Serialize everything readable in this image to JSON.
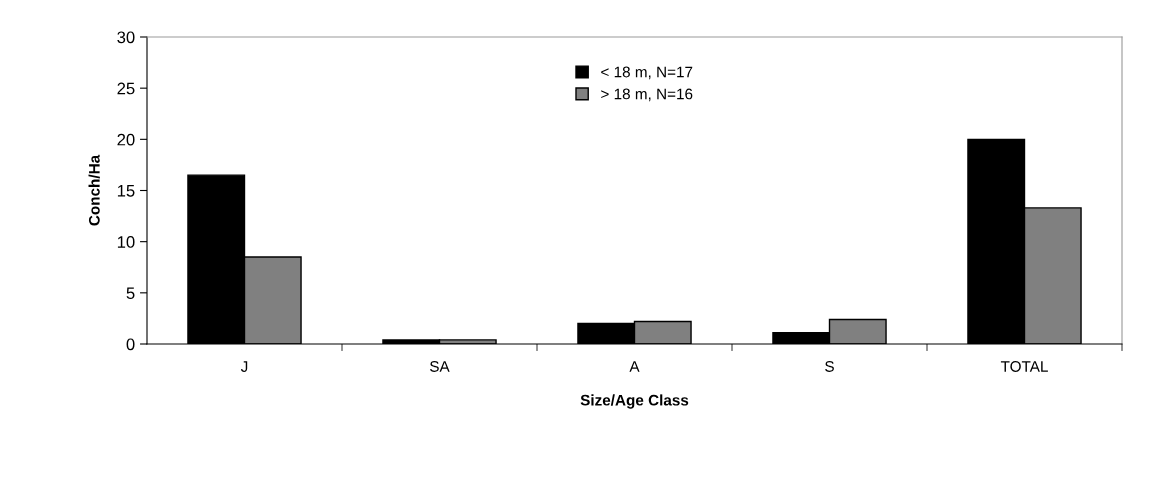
{
  "chart_data": {
    "type": "bar",
    "xlabel": "Size/Age Class",
    "ylabel": "Conch/Ha",
    "categories": [
      "J",
      "SA",
      "A",
      "S",
      "TOTAL"
    ],
    "series": [
      {
        "name": "< 18 m, N=17",
        "color": "#000000",
        "values": [
          16.5,
          0.4,
          2.0,
          1.1,
          20.0
        ]
      },
      {
        "name": "> 18 m, N=16",
        "color": "#808080",
        "values": [
          8.5,
          0.4,
          2.2,
          2.4,
          13.3
        ]
      }
    ],
    "ylim": [
      0,
      30
    ],
    "yticks": [
      0,
      5,
      10,
      15,
      20,
      25,
      30
    ],
    "grid": false,
    "legend": "top"
  }
}
